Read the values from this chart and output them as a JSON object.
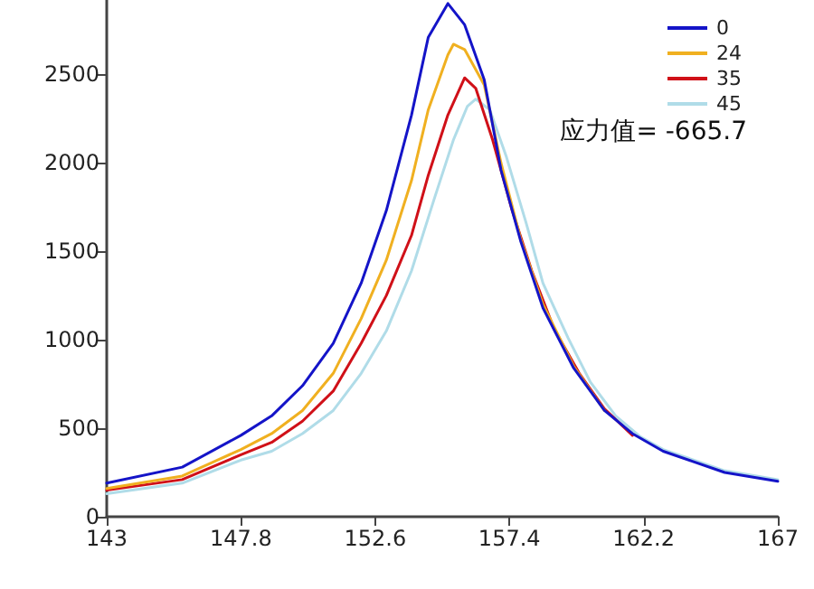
{
  "chart_data": {
    "type": "line",
    "annotations": [
      "应力值= -665.7"
    ],
    "legend": "top right",
    "grid": false,
    "marker": "none",
    "line_style": "solid",
    "xlim": [
      143,
      167
    ],
    "xticks": [
      143,
      147.8,
      152.6,
      157.4,
      162.2,
      167
    ],
    "ylim": [
      0,
      2920
    ],
    "yticks": [
      0,
      500,
      1000,
      1500,
      2000,
      2500
    ],
    "series": [
      {
        "name": "0",
        "color": "#1414c8",
        "x": [
          143,
          145.7,
          147.8,
          148.9,
          150,
          151.1,
          152.1,
          153,
          153.9,
          154.5,
          155.2,
          155.8,
          156.5,
          157.1,
          157.8,
          158.6,
          159.7,
          160.8,
          161.8,
          162.9,
          165.1,
          167
        ],
        "values": [
          190,
          280,
          460,
          570,
          740,
          980,
          1320,
          1730,
          2270,
          2710,
          2900,
          2780,
          2470,
          1960,
          1560,
          1180,
          840,
          600,
          470,
          370,
          250,
          200
        ]
      },
      {
        "name": "24",
        "color": "#f0b020",
        "x": [
          143,
          145.7,
          147.8,
          148.9,
          150,
          151.1,
          152.1,
          153,
          153.9,
          154.5,
          155.2,
          155.4,
          155.8,
          156.5,
          157.1,
          157.8,
          158.6,
          159.7,
          160.8
        ],
        "values": [
          160,
          230,
          380,
          470,
          600,
          810,
          1120,
          1450,
          1900,
          2300,
          2610,
          2670,
          2640,
          2440,
          2000,
          1570,
          1200,
          850,
          600
        ]
      },
      {
        "name": "35",
        "color": "#d01018",
        "x": [
          143,
          145.7,
          147.8,
          148.9,
          150,
          151.1,
          152.1,
          153,
          153.9,
          154.5,
          155.2,
          155.8,
          156.2,
          156.8,
          157.5,
          158.2,
          159,
          159.9,
          160.8,
          161.8
        ],
        "values": [
          150,
          210,
          350,
          420,
          540,
          710,
          980,
          1250,
          1590,
          1930,
          2270,
          2480,
          2420,
          2130,
          1730,
          1390,
          1060,
          810,
          610,
          460
        ]
      },
      {
        "name": "45",
        "color": "#b0dce8",
        "x": [
          143,
          145.7,
          147.8,
          148.9,
          150,
          151.1,
          152.1,
          153,
          153.9,
          154.7,
          155.4,
          155.9,
          156.2,
          156.7,
          157.3,
          158,
          158.6,
          159.5,
          160.3,
          161.2,
          162.1,
          162.9,
          165.1,
          167
        ],
        "values": [
          130,
          190,
          320,
          370,
          470,
          600,
          810,
          1050,
          1390,
          1790,
          2130,
          2320,
          2360,
          2300,
          2030,
          1660,
          1320,
          1010,
          760,
          570,
          450,
          380,
          260,
          210
        ]
      }
    ]
  }
}
